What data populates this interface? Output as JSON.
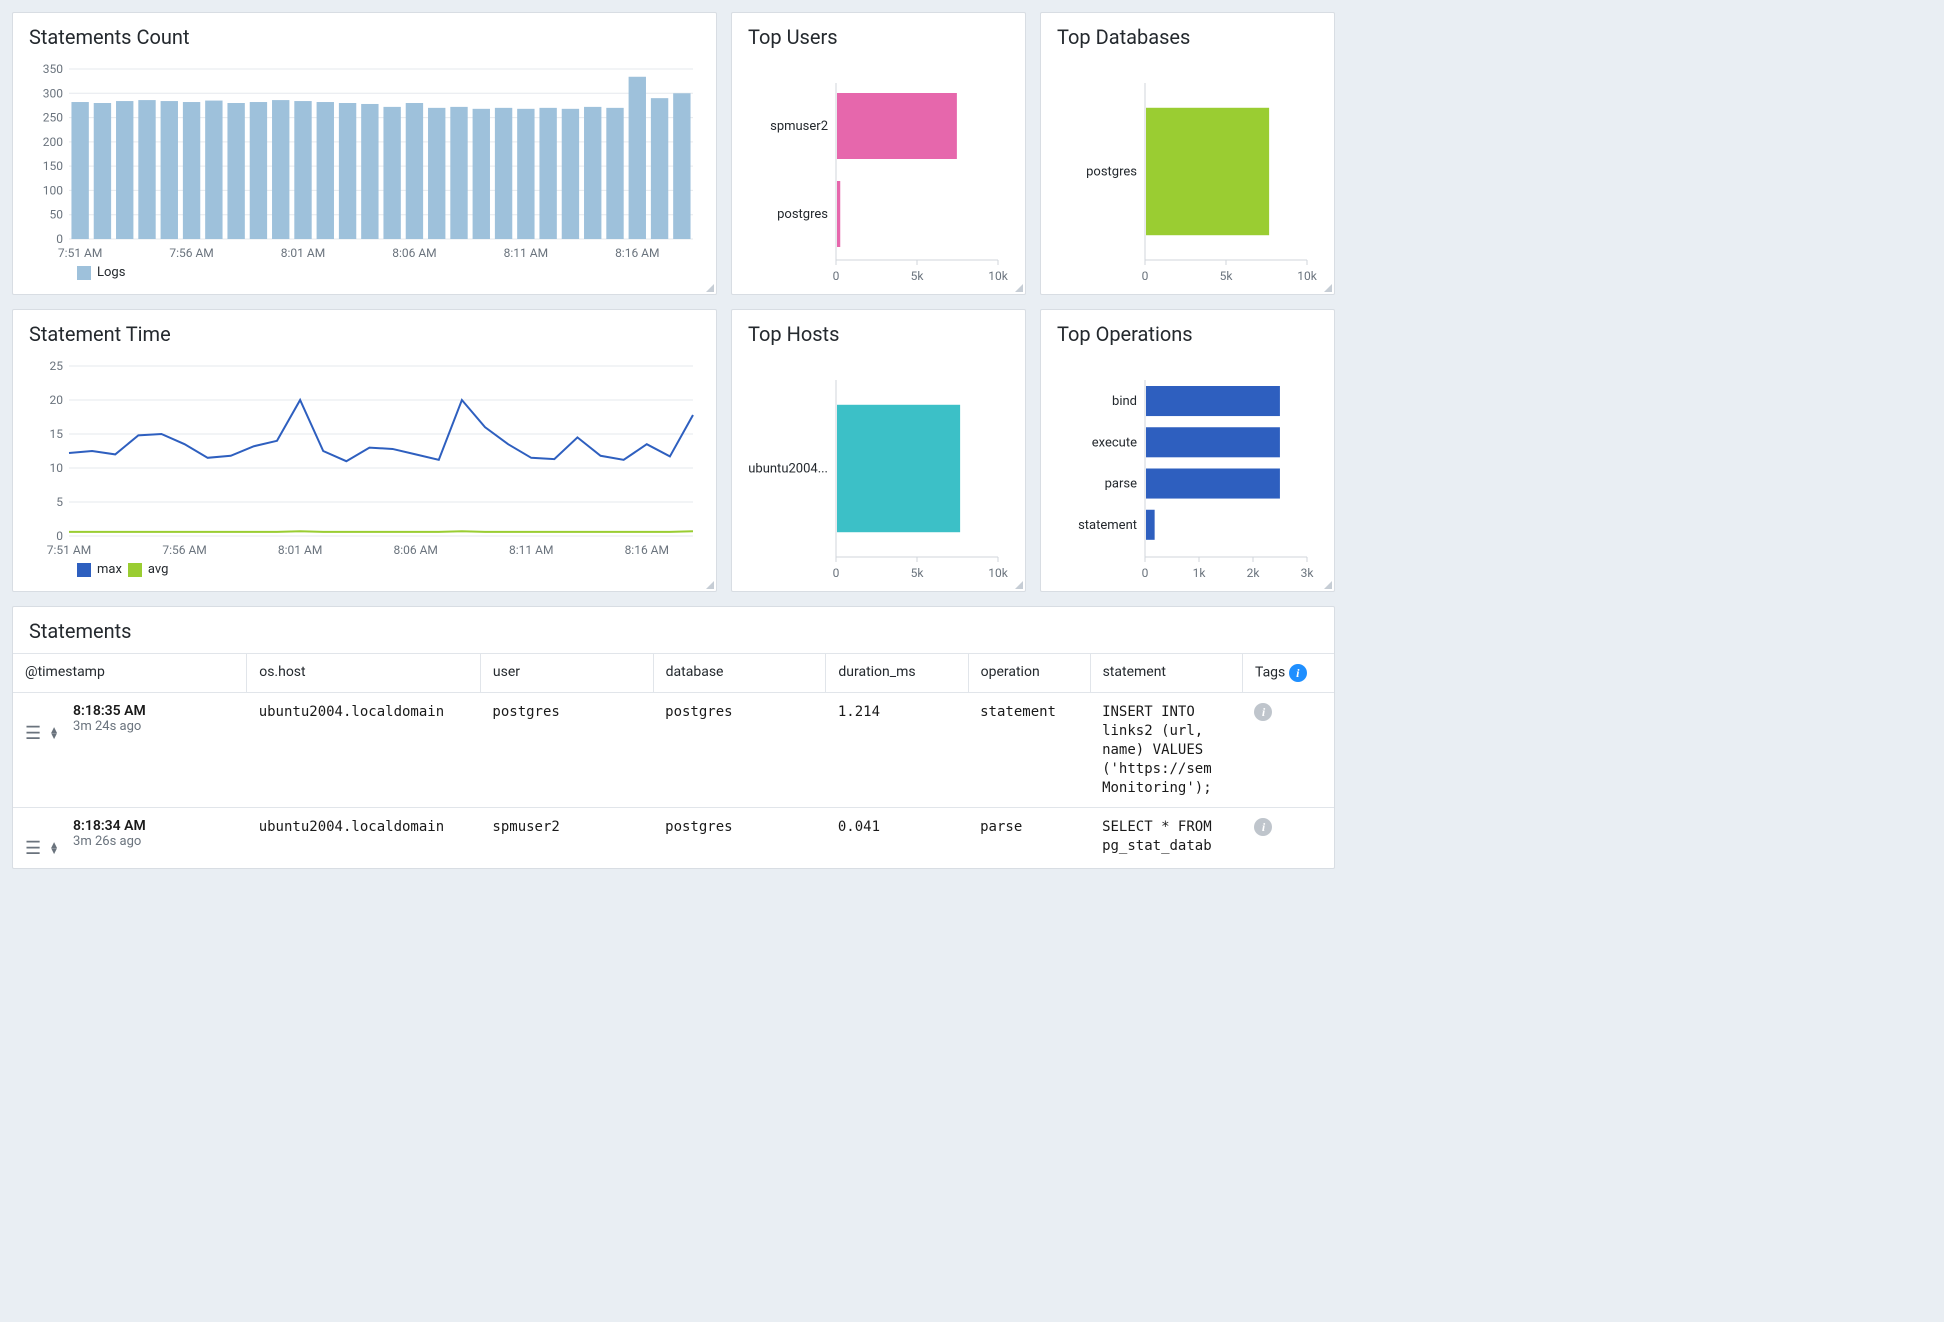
{
  "colors": {
    "panel_border": "#d8dde3",
    "grid": "#e6e9ed",
    "axis_text": "#6a737d",
    "bar_blue": "#9ec1db",
    "line_max": "#2e5fbf",
    "line_avg": "#9acd32",
    "pink": "#e667ac",
    "green": "#9acd32",
    "teal": "#3cc0c7",
    "op_blue": "#2e5fbf",
    "info_tag_bg": "#1f8fff",
    "info_row_bg": "#bfc5cc"
  },
  "statements_count": {
    "type": "bar",
    "title": "Statements Count",
    "x_labels": [
      "7:51 AM",
      "7:56 AM",
      "8:01 AM",
      "8:06 AM",
      "8:11 AM",
      "8:16 AM"
    ],
    "y_max": 350,
    "y_step": 50,
    "values": [
      282,
      280,
      284,
      286,
      284,
      282,
      285,
      280,
      282,
      286,
      284,
      282,
      280,
      278,
      272,
      280,
      270,
      272,
      268,
      270,
      268,
      270,
      268,
      272,
      270,
      334,
      290,
      300
    ],
    "bar_color": "#9ec1db",
    "legend": [
      {
        "label": "Logs",
        "color": "#9ec1db"
      }
    ]
  },
  "statement_time": {
    "type": "line",
    "title": "Statement Time",
    "x_labels": [
      "7:51 AM",
      "7:56 AM",
      "8:01 AM",
      "8:06 AM",
      "8:11 AM",
      "8:16 AM"
    ],
    "y_max": 25,
    "y_step": 5,
    "series": [
      {
        "name": "max",
        "color": "#2e5fbf",
        "values": [
          12.2,
          12.5,
          12.0,
          14.8,
          15.0,
          13.5,
          11.5,
          11.8,
          13.2,
          14.0,
          20.0,
          12.5,
          11.0,
          13.0,
          12.8,
          12.0,
          11.2,
          20.0,
          16.0,
          13.5,
          11.5,
          11.3,
          14.5,
          11.8,
          11.2,
          13.5,
          11.7,
          17.8
        ]
      },
      {
        "name": "avg",
        "color": "#9acd32",
        "values": [
          0.6,
          0.6,
          0.6,
          0.6,
          0.6,
          0.6,
          0.6,
          0.6,
          0.6,
          0.6,
          0.7,
          0.6,
          0.6,
          0.6,
          0.6,
          0.6,
          0.6,
          0.7,
          0.6,
          0.6,
          0.6,
          0.6,
          0.6,
          0.6,
          0.6,
          0.6,
          0.6,
          0.7
        ]
      }
    ],
    "legend": [
      {
        "label": "max",
        "color": "#2e5fbf"
      },
      {
        "label": "avg",
        "color": "#9acd32"
      }
    ]
  },
  "top_users": {
    "type": "hbar",
    "title": "Top Users",
    "x_max": 10000,
    "x_ticks": [
      0,
      5000,
      10000
    ],
    "x_tick_labels": [
      "0",
      "5k",
      "10k"
    ],
    "rows": [
      {
        "label": "spmuser2",
        "value": 7400,
        "color": "#e667ac"
      },
      {
        "label": "postgres",
        "value": 200,
        "color": "#e667ac"
      }
    ]
  },
  "top_databases": {
    "type": "hbar",
    "title": "Top Databases",
    "x_max": 10000,
    "x_ticks": [
      0,
      5000,
      10000
    ],
    "x_tick_labels": [
      "0",
      "5k",
      "10k"
    ],
    "rows": [
      {
        "label": "postgres",
        "value": 7600,
        "color": "#9acd32"
      }
    ]
  },
  "top_hosts": {
    "type": "hbar",
    "title": "Top Hosts",
    "x_max": 10000,
    "x_ticks": [
      0,
      5000,
      10000
    ],
    "x_tick_labels": [
      "0",
      "5k",
      "10k"
    ],
    "rows": [
      {
        "label": "ubuntu2004...",
        "value": 7600,
        "color": "#3cc0c7"
      }
    ]
  },
  "top_operations": {
    "type": "hbar",
    "title": "Top Operations",
    "x_max": 3000,
    "x_ticks": [
      0,
      1000,
      2000,
      3000
    ],
    "x_tick_labels": [
      "0",
      "1k",
      "2k",
      "3k"
    ],
    "rows": [
      {
        "label": "bind",
        "value": 2480,
        "color": "#2e5fbf"
      },
      {
        "label": "execute",
        "value": 2480,
        "color": "#2e5fbf"
      },
      {
        "label": "parse",
        "value": 2480,
        "color": "#2e5fbf"
      },
      {
        "label": "statement",
        "value": 160,
        "color": "#2e5fbf"
      }
    ]
  },
  "statements_table": {
    "title": "Statements",
    "columns": [
      "@timestamp",
      "os.host",
      "user",
      "database",
      "duration_ms",
      "operation",
      "statement",
      "Tags"
    ],
    "rows": [
      {
        "ts": "8:18:35 AM",
        "ago": "3m 24s ago",
        "host": "ubuntu2004.localdomain",
        "user": "postgres",
        "database": "postgres",
        "duration": "1.214",
        "operation": "statement",
        "statement": "INSERT INTO links2 (url, name) VALUES ('https://sem Monitoring');"
      },
      {
        "ts": "8:18:34 AM",
        "ago": "3m 26s ago",
        "host": "ubuntu2004.localdomain",
        "user": "spmuser2",
        "database": "postgres",
        "duration": "0.041",
        "operation": "parse",
        "statement": "SELECT * FROM pg_stat_datab"
      }
    ]
  },
  "icons": {
    "info_glyph": "i"
  }
}
